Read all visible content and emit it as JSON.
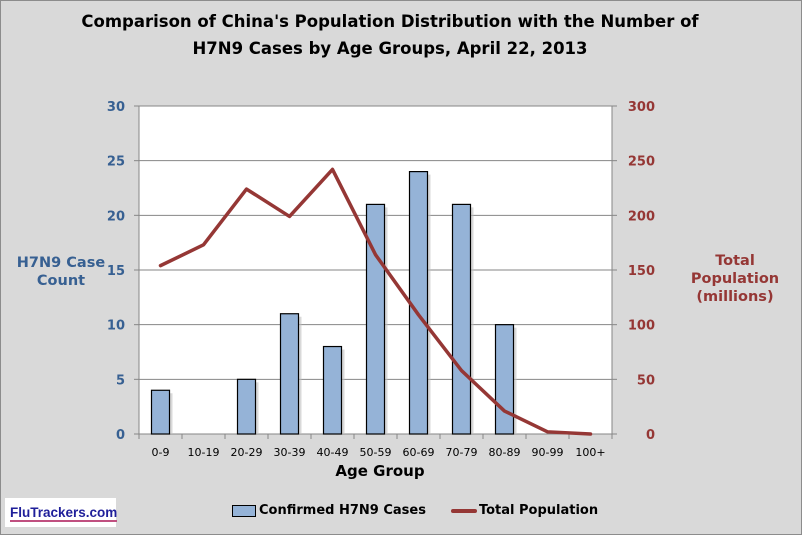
{
  "chart_data": {
    "type": "bar+line",
    "title": "Comparison  of  China's Population  Distribution  with the Number  of H7N9 Cases by Age Groups,  April 22, 2013",
    "title_lines": [
      "Comparison  of  China's Population  Distribution  with the Number  of",
      "H7N9 Cases by Age Groups,  April 22, 2013"
    ],
    "xlabel": "Age Group",
    "ylabel_left": "H7N9 Case Count",
    "ylabel_left_lines": [
      "H7N9 Case",
      "Count"
    ],
    "ylabel_right_lines": [
      "Total Population",
      "(millions)"
    ],
    "categories": [
      "0-9",
      "10-19",
      "20-29",
      "30-39",
      "40-49",
      "50-59",
      "60-69",
      "70-79",
      "80-89",
      "90-99",
      "100+"
    ],
    "ylim_left": [
      0,
      30
    ],
    "yticks_left": [
      "0",
      "5",
      "10",
      "15",
      "20",
      "25",
      "30"
    ],
    "ylim_right": [
      0,
      300
    ],
    "yticks_right": [
      "0",
      "50",
      "100",
      "150",
      "200",
      "250",
      "300"
    ],
    "grid": true,
    "legend_position": "bottom",
    "series": [
      {
        "name": "Confirmed H7N9 Cases",
        "type": "bar",
        "axis": "left",
        "color": "#95b3d7",
        "values": [
          4,
          0,
          5,
          11,
          8,
          21,
          24,
          21,
          10,
          0,
          0
        ]
      },
      {
        "name": "Total Population",
        "type": "line",
        "axis": "right",
        "color": "#953735",
        "values": [
          154,
          173,
          224,
          199,
          242,
          164,
          109,
          58,
          21,
          2,
          0
        ]
      }
    ]
  },
  "logo": "FluTrackers.com"
}
